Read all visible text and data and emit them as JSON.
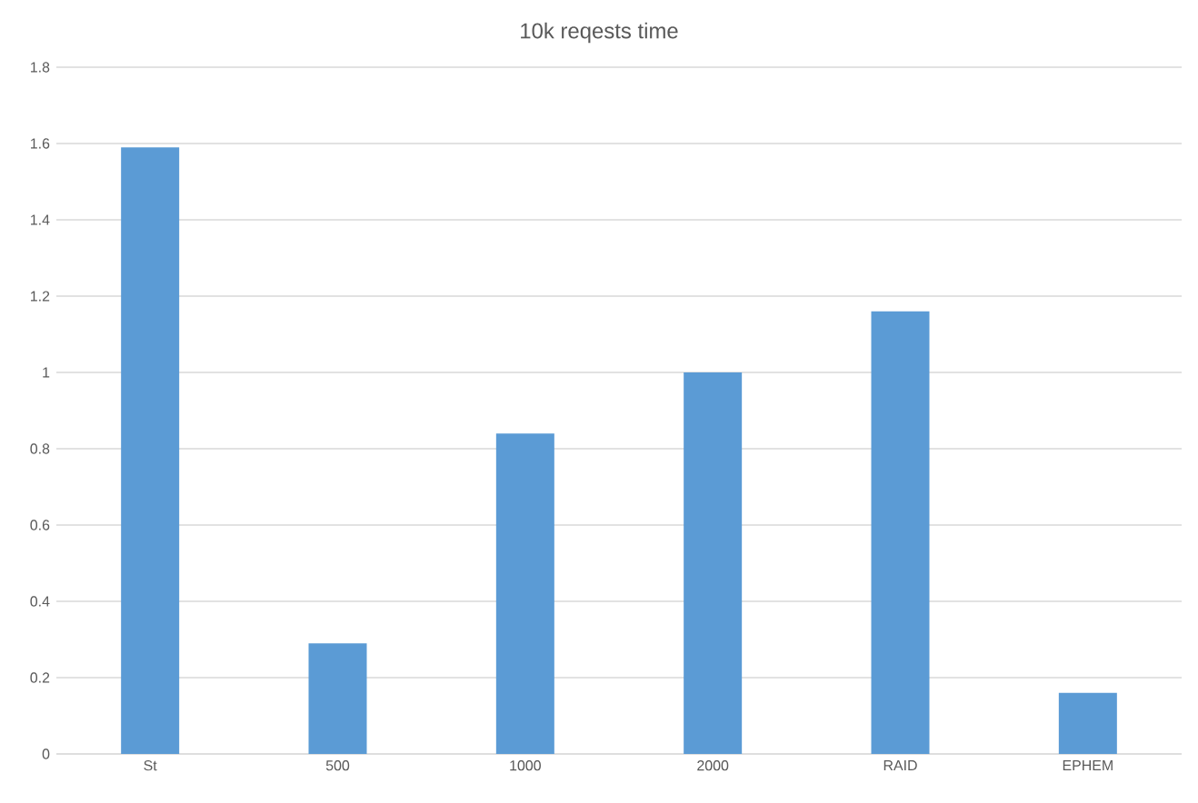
{
  "chart_data": {
    "type": "bar",
    "title": "10k reqests time",
    "categories": [
      "St",
      "500",
      "1000",
      "2000",
      "RAID",
      "EPHEM"
    ],
    "values": [
      1.59,
      0.29,
      0.84,
      1.0,
      1.16,
      0.16
    ],
    "color": "#5b9bd5",
    "ylim": [
      0,
      1.8
    ],
    "yticks": [
      0,
      0.2,
      0.4,
      0.6,
      0.8,
      1,
      1.2,
      1.4,
      1.6,
      1.8
    ],
    "grid": "y"
  }
}
